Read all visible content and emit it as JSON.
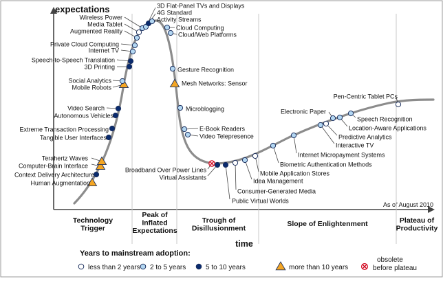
{
  "chart_data": {
    "type": "scatter",
    "subtype": "hype-cycle",
    "y_axis_label": "expectations",
    "x_axis_label": "time",
    "note": "As of August 2010",
    "phases": [
      {
        "lines": [
          "Technology",
          "Trigger"
        ]
      },
      {
        "lines": [
          "Peak of",
          "Inflated",
          "Expectations"
        ]
      },
      {
        "lines": [
          "Trough of",
          "Disillusionment"
        ]
      },
      {
        "lines": [
          "Slope of Enlightenment"
        ]
      },
      {
        "lines": [
          "Plateau of",
          "Productivity"
        ]
      }
    ],
    "legend": {
      "title": "Years to mainstream adoption:",
      "items": [
        {
          "key": "lt2",
          "label": "less than 2 years"
        },
        {
          "key": "2to5",
          "label": "2 to 5 years"
        },
        {
          "key": "5to10",
          "label": "5 to 10 years"
        },
        {
          "key": "gt10",
          "label": "more than 10 years"
        },
        {
          "key": "obsolete",
          "label_line1": "obsolete",
          "label_line2": "before plateau"
        }
      ]
    },
    "categories": {
      "lt2": {
        "shape": "circle",
        "fill": "#ffffff"
      },
      "2to5": {
        "shape": "circle",
        "fill": "#b3d7f2"
      },
      "5to10": {
        "shape": "circle",
        "fill": "#0a2b6e"
      },
      "gt10": {
        "shape": "triangle",
        "fill": "#f5a623"
      },
      "obsolete": {
        "shape": "cross",
        "fill": "#ffffff"
      }
    },
    "technologies": [
      {
        "label": "Human Augmentation",
        "cat": "gt10"
      },
      {
        "label": "Context Delivery Architecture",
        "cat": "5to10"
      },
      {
        "label": "Computer-Brain Interface",
        "cat": "gt10"
      },
      {
        "label": "Terahertz Waves",
        "cat": "gt10"
      },
      {
        "label": "Tangible User Interfaces",
        "cat": "5to10"
      },
      {
        "label": "Extreme Transaction Processing",
        "cat": "5to10"
      },
      {
        "label": "Autonomous Vehicles",
        "cat": "5to10"
      },
      {
        "label": "Video Search",
        "cat": "5to10"
      },
      {
        "label": "Mobile Robots",
        "cat": "gt10"
      },
      {
        "label": "Social Analytics",
        "cat": "2to5"
      },
      {
        "label": "3D Printing",
        "cat": "5to10"
      },
      {
        "label": "Speech-to-Speech Translation",
        "cat": "5to10"
      },
      {
        "label": "Internet TV",
        "cat": "2to5"
      },
      {
        "label": "Private Cloud Computing",
        "cat": "2to5"
      },
      {
        "label": "Augmented Reality",
        "cat": "2to5"
      },
      {
        "label": "Media Tablet",
        "cat": "lt2"
      },
      {
        "label": "Wireless Power",
        "cat": "2to5"
      },
      {
        "label": "3D Flat-Panel TVs and Displays",
        "cat": "2to5"
      },
      {
        "label": "4G Standard",
        "cat": "5to10"
      },
      {
        "label": "Activity Streams",
        "cat": "2to5"
      },
      {
        "label": "Cloud Computing",
        "cat": "2to5"
      },
      {
        "label": "Cloud/Web Platforms",
        "cat": "2to5"
      },
      {
        "label": "Gesture Recognition",
        "cat": "2to5"
      },
      {
        "label": "Mesh Networks: Sensor",
        "cat": "gt10"
      },
      {
        "label": "Microblogging",
        "cat": "2to5"
      },
      {
        "label": "E-Book Readers",
        "cat": "2to5"
      },
      {
        "label": "Video Telepresence",
        "cat": "2to5"
      },
      {
        "label": "Broadband Over Power Lines",
        "cat": "obsolete"
      },
      {
        "label": "Virtual Assistants",
        "cat": "5to10"
      },
      {
        "label": "Public Virtual Worlds",
        "cat": "5to10"
      },
      {
        "label": "Consumer-Generated Media",
        "cat": "lt2"
      },
      {
        "label": "Idea Management",
        "cat": "2to5"
      },
      {
        "label": "Mobile Application Stores",
        "cat": "lt2"
      },
      {
        "label": "Biometric Authentication Methods",
        "cat": "2to5"
      },
      {
        "label": "Internet Micropayment Systems",
        "cat": "2to5"
      },
      {
        "label": "Interactive TV",
        "cat": "2to5"
      },
      {
        "label": "Predictive Analytics",
        "cat": "lt2"
      },
      {
        "label": "Electronic Paper",
        "cat": "2to5"
      },
      {
        "label": "Location-Aware Applications",
        "cat": "2to5"
      },
      {
        "label": "Speech Recognition",
        "cat": "2to5"
      },
      {
        "label": "Pen-Centric Tablet PCs",
        "cat": "lt2"
      }
    ]
  }
}
